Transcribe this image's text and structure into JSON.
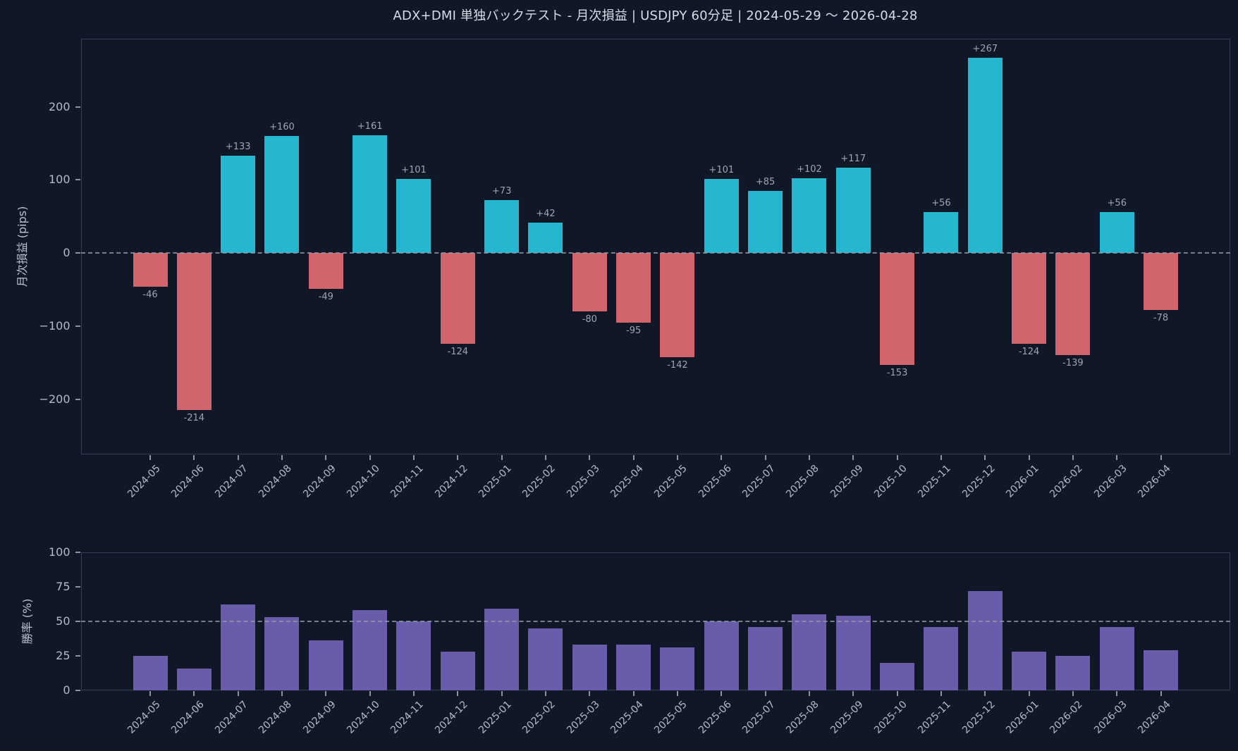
{
  "title": "ADX+DMI 単独バックテスト - 月次損益 | USDJPY 60分足 | 2024-05-29 〜 2026-04-28",
  "colors": {
    "background": "#101726",
    "profit_bar": "#24b7cf",
    "loss_bar": "#d2656b",
    "winrate_bar": "#695dab",
    "title_text": "#d6dde6",
    "tick_text": "#b2bcca",
    "bar_label_text": "#9ba6b4",
    "axis_spine": "#323d54",
    "dashed_line": "#8f99a9"
  },
  "chart_data": [
    {
      "type": "bar",
      "name": "monthly-pl",
      "title": "",
      "xlabel": "",
      "ylabel": "月次損益 (pips)",
      "categories": [
        "2024-05",
        "2024-06",
        "2024-07",
        "2024-08",
        "2024-09",
        "2024-10",
        "2024-11",
        "2024-12",
        "2025-01",
        "2025-02",
        "2025-03",
        "2025-04",
        "2025-05",
        "2025-06",
        "2025-07",
        "2025-08",
        "2025-09",
        "2025-10",
        "2025-11",
        "2025-12",
        "2026-01",
        "2026-02",
        "2026-03",
        "2026-04"
      ],
      "values": [
        -46,
        -214,
        133,
        160,
        -49,
        161,
        101,
        -124,
        73,
        42,
        -80,
        -95,
        -142,
        101,
        85,
        102,
        117,
        -153,
        56,
        267,
        -124,
        -139,
        56,
        -78
      ],
      "bar_labels": [
        "-46",
        "-214",
        "+133",
        "+160",
        "-49",
        "+161",
        "+101",
        "-124",
        "+73",
        "+42",
        "-80",
        "-95",
        "-142",
        "+101",
        "+85",
        "+102",
        "+117",
        "-153",
        "+56",
        "+267",
        "-124",
        "-139",
        "+56",
        "-78"
      ],
      "ylim": [
        -275,
        293
      ],
      "yticks": [
        {
          "value": 200,
          "label": "200"
        },
        {
          "value": 100,
          "label": "100"
        },
        {
          "value": 0,
          "label": "0"
        },
        {
          "value": -100,
          "label": "−100"
        },
        {
          "value": -200,
          "label": "−200"
        }
      ],
      "reference_line": 0,
      "grid": false,
      "legend": null
    },
    {
      "type": "bar",
      "name": "winrate",
      "title": "",
      "xlabel": "",
      "ylabel": "勝率 (%)",
      "categories": [
        "2024-05",
        "2024-06",
        "2024-07",
        "2024-08",
        "2024-09",
        "2024-10",
        "2024-11",
        "2024-12",
        "2025-01",
        "2025-02",
        "2025-03",
        "2025-04",
        "2025-05",
        "2025-06",
        "2025-07",
        "2025-08",
        "2025-09",
        "2025-10",
        "2025-11",
        "2025-12",
        "2026-01",
        "2026-02",
        "2026-03",
        "2026-04"
      ],
      "values": [
        25,
        16,
        62,
        53,
        36,
        58,
        50,
        28,
        59,
        45,
        33,
        33,
        31,
        50,
        46,
        55,
        54,
        20,
        46,
        72,
        28,
        25,
        46,
        29
      ],
      "ylim": [
        0,
        100
      ],
      "yticks": [
        {
          "value": 100,
          "label": "100"
        },
        {
          "value": 75,
          "label": "75"
        },
        {
          "value": 50,
          "label": "50"
        },
        {
          "value": 25,
          "label": "25"
        },
        {
          "value": 0,
          "label": "0"
        }
      ],
      "reference_line": 50,
      "grid": false,
      "legend": null
    }
  ]
}
